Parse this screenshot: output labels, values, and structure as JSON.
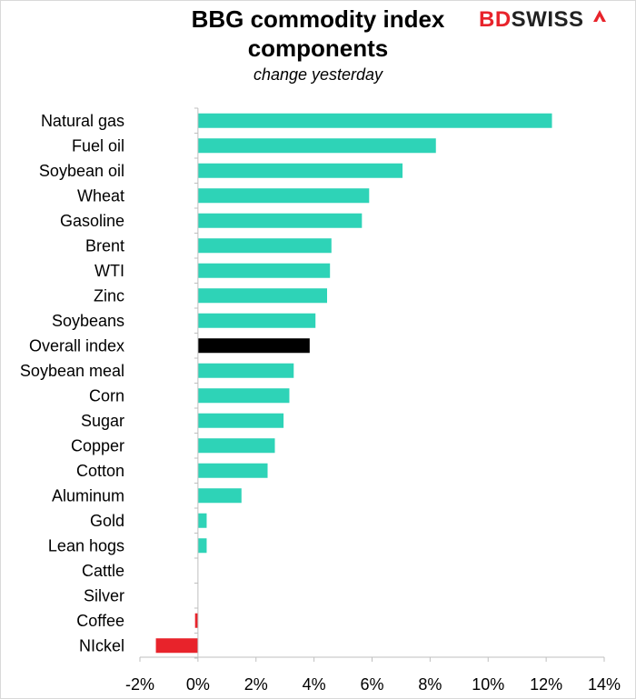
{
  "header": {
    "title_line1": "BBG commodity index",
    "title_line2": "components",
    "subtitle": "change yesterday"
  },
  "logo": {
    "text_bd": "BD",
    "text_swiss": "SWISS",
    "mark_icon": "chevron-arrow-icon"
  },
  "colors": {
    "positive": "#2ed3b7",
    "negative": "#e8232b",
    "highlight": "#000000",
    "axis": "#bfbfbf"
  },
  "chart_data": {
    "type": "bar",
    "orientation": "horizontal",
    "title": "BBG commodity index components",
    "subtitle": "change yesterday",
    "xlabel": "",
    "ylabel": "",
    "xlim": [
      -2,
      14
    ],
    "x_ticks": [
      "-2%",
      "0%",
      "2%",
      "4%",
      "6%",
      "8%",
      "10%",
      "12%",
      "14%"
    ],
    "x_tick_values": [
      -2,
      0,
      2,
      4,
      6,
      8,
      10,
      12,
      14
    ],
    "grid": false,
    "legend": "none",
    "categories": [
      "Natural gas",
      "Fuel oil",
      "Soybean oil",
      "Wheat",
      "Gasoline",
      "Brent",
      "WTI",
      "Zinc",
      "Soybeans",
      "Overall index",
      "Soybean meal",
      "Corn",
      "Sugar",
      "Copper",
      "Cotton",
      "Aluminum",
      "Gold",
      "Lean hogs",
      "Cattle",
      "Silver",
      "Coffee",
      "NIckel"
    ],
    "values": [
      12.2,
      8.2,
      7.05,
      5.9,
      5.65,
      4.6,
      4.55,
      4.45,
      4.05,
      3.85,
      3.3,
      3.15,
      2.95,
      2.65,
      2.4,
      1.5,
      0.3,
      0.3,
      0.0,
      0.0,
      -0.1,
      -1.45
    ],
    "highlight_category": "Overall index"
  }
}
